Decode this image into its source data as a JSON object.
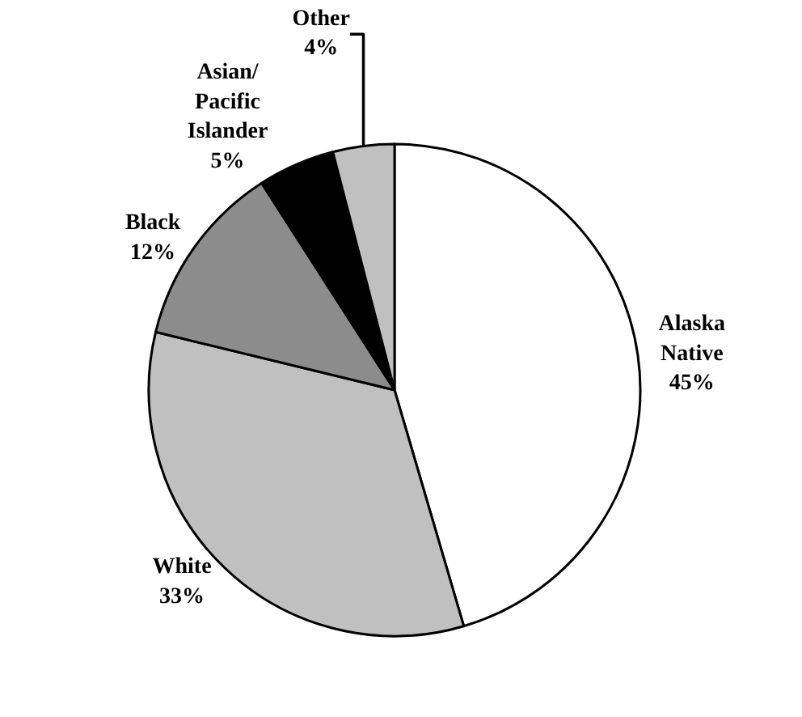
{
  "chart_data": {
    "type": "pie",
    "categories": [
      "Alaska Native",
      "White",
      "Black",
      "Asian/Pacific Islander",
      "Other"
    ],
    "values": [
      45,
      33,
      12,
      5,
      4
    ],
    "value_labels": [
      "45%",
      "33%",
      "12%",
      "5%",
      "4%"
    ],
    "colors": [
      "#ffffff",
      "#c0c0c0",
      "#8c8c8c",
      "#000000",
      "#c0c0c0"
    ],
    "legend": false
  }
}
